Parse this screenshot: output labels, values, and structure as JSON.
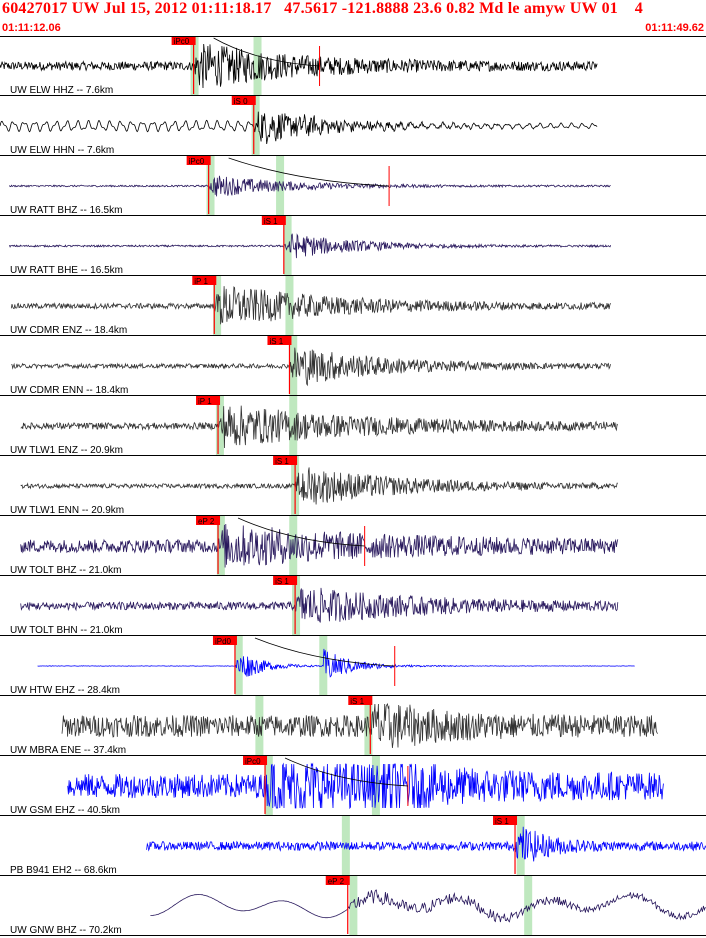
{
  "header": {
    "title": "60427017 UW Jul 15, 2012 01:11:18.17   47.5617 -121.8888 23.6 0.82 Md le amyw UW 01    4",
    "time_start": "01:11:12.06",
    "time_end": "01:11:49.62"
  },
  "colors": {
    "pick_bg": "#ff0000",
    "pick_text": "#000000",
    "window_band": "#b8e6b8",
    "label": "#000000",
    "separator": "#000000"
  },
  "chart_data": {
    "type": "line",
    "title": "60427017 UW Jul 15, 2012 01:11:18.17   47.5617 -121.8888 23.6 0.82 Md le amyw UW 01    4",
    "xlabel": "",
    "ylabel": "",
    "xlim": [
      "01:11:12.06",
      "01:11:49.62"
    ],
    "x_seconds_range": [
      0,
      37.56
    ],
    "traces": [
      {
        "label": "UW ELW HHZ -- 7.6km",
        "color": "#000000",
        "start": 0.0,
        "end": 31.8,
        "amp": 0.55,
        "noise": 0.2,
        "onset": 10.3,
        "burst_amp": 1.0,
        "decay": 5.0,
        "style": "hf",
        "pick": {
          "label": "iPc0",
          "time": 10.3,
          "marker": 17.0
        },
        "band": 10.35,
        "band2": 13.7
      },
      {
        "label": "UW ELW HHN -- 7.6km",
        "color": "#000000",
        "start": 0.0,
        "end": 31.8,
        "amp": 0.5,
        "noise": 0.2,
        "onset": 13.5,
        "burst_amp": 0.9,
        "decay": 4.0,
        "style": "lf",
        "pick": {
          "label": "iS 0",
          "time": 13.5
        },
        "band": 13.6
      },
      {
        "label": "UW RATT BHZ -- 16.5km",
        "color": "#2a1a5e",
        "start": 0.5,
        "end": 32.5,
        "amp": 0.38,
        "noise": 0.05,
        "onset": 11.1,
        "burst_amp": 0.7,
        "decay": 4.0,
        "style": "hf",
        "pick": {
          "label": "iPc0",
          "time": 11.1,
          "marker": 20.7
        },
        "band": 11.2,
        "band2": 14.9
      },
      {
        "label": "UW RATT BHE -- 16.5km",
        "color": "#2a1a5e",
        "start": 0.5,
        "end": 32.5,
        "amp": 0.4,
        "noise": 0.05,
        "onset": 15.1,
        "burst_amp": 0.8,
        "decay": 3.5,
        "style": "hf",
        "pick": {
          "label": "iS 1",
          "time": 15.1
        },
        "band": 15.3
      },
      {
        "label": "UW CDMR ENZ -- 18.4km",
        "color": "#333333",
        "start": 0.6,
        "end": 32.5,
        "amp": 0.65,
        "noise": 0.12,
        "onset": 11.4,
        "burst_amp": 0.95,
        "decay": 6.0,
        "style": "hf",
        "pick": {
          "label": "iP 1",
          "time": 11.4
        },
        "band": 11.55,
        "band2": 15.4
      },
      {
        "label": "UW CDMR ENN -- 18.4km",
        "color": "#333333",
        "start": 0.6,
        "end": 32.5,
        "amp": 0.6,
        "noise": 0.1,
        "onset": 15.4,
        "burst_amp": 0.95,
        "decay": 4.5,
        "style": "hf",
        "pick": {
          "label": "iS 1",
          "time": 15.4
        },
        "band": 15.6
      },
      {
        "label": "UW TLW1 ENZ -- 20.9km",
        "color": "#333333",
        "start": 1.1,
        "end": 32.9,
        "amp": 0.7,
        "noise": 0.15,
        "onset": 11.6,
        "burst_amp": 0.95,
        "decay": 7.0,
        "style": "hf",
        "pick": {
          "label": "iP 1",
          "time": 11.6
        },
        "band": 11.7,
        "band2": 15.6
      },
      {
        "label": "UW TLW1 ENN -- 20.9km",
        "color": "#333333",
        "start": 1.1,
        "end": 32.9,
        "amp": 0.7,
        "noise": 0.1,
        "onset": 15.7,
        "burst_amp": 0.95,
        "decay": 5.0,
        "style": "hf",
        "pick": {
          "label": "iS 1",
          "time": 15.7
        },
        "band": 15.7
      },
      {
        "label": "UW TOLT BHZ -- 21.0km",
        "color": "#2a1a5e",
        "start": 1.1,
        "end": 32.9,
        "amp": 0.5,
        "noise": 0.3,
        "onset": 11.6,
        "burst_amp": 0.8,
        "decay": 8.0,
        "style": "hf",
        "pick": {
          "label": "eP 2",
          "time": 11.6,
          "marker": 19.4
        },
        "band": 11.75,
        "band2": 15.6
      },
      {
        "label": "UW TOLT BHN -- 21.0km",
        "color": "#2a1a5e",
        "start": 1.1,
        "end": 32.9,
        "amp": 0.45,
        "noise": 0.2,
        "onset": 15.7,
        "burst_amp": 0.9,
        "decay": 6.0,
        "style": "hf",
        "pick": {
          "label": "iS 1",
          "time": 15.7
        },
        "band": 15.75
      },
      {
        "label": "UW HTW EHZ -- 28.4km",
        "color": "#0000ff",
        "start": 2.0,
        "end": 33.8,
        "amp": 0.9,
        "noise": 0.01,
        "onset": 12.5,
        "burst_amp": 0.9,
        "decay": 1.2,
        "style": "hf",
        "pick": {
          "label": "iPd0",
          "time": 12.5,
          "marker": 21.0
        },
        "band": 12.7,
        "band2": 17.2,
        "event2": 17.2
      },
      {
        "label": "UW MBRA ENE -- 37.4km",
        "color": "#333333",
        "start": 3.3,
        "end": 35.0,
        "amp": 0.65,
        "noise": 0.5,
        "onset": 19.7,
        "burst_amp": 0.95,
        "decay": 3.0,
        "style": "hf",
        "pick": {
          "label": "iS 1",
          "time": 19.7
        },
        "band": 13.8,
        "band2": 19.6
      },
      {
        "label": "UW GSM EHZ -- 40.5km",
        "color": "#0000ff",
        "start": 3.6,
        "end": 35.3,
        "amp": 0.7,
        "noise": 0.55,
        "onset": 14.1,
        "burst_amp": 1.0,
        "decay": 8.0,
        "style": "hf",
        "pick": {
          "label": "iPc0",
          "time": 14.1,
          "marker": 21.7
        },
        "band": 14.3,
        "band2": 20.0,
        "event2": 20.3
      },
      {
        "label": "PB B941 EH2 -- 68.6km",
        "color": "#0000ff",
        "start": 7.8,
        "end": 39.5,
        "amp": 0.5,
        "noise": 0.2,
        "onset": 27.4,
        "burst_amp": 1.0,
        "decay": 1.5,
        "style": "hf",
        "pick": {
          "label": "iS 1",
          "time": 27.4
        },
        "band": 18.4,
        "band2": 27.7
      },
      {
        "label": "UW GNW BHZ -- 70.2km",
        "color": "#2a1a5e",
        "start": 8.0,
        "end": 39.8,
        "amp": 0.7,
        "noise": 0.1,
        "onset": 18.5,
        "burst_amp": 0.6,
        "decay": 15.0,
        "style": "lp",
        "pick": {
          "label": "eP 2",
          "time": 18.5
        },
        "band": 18.8,
        "band2": 28.1
      }
    ]
  }
}
